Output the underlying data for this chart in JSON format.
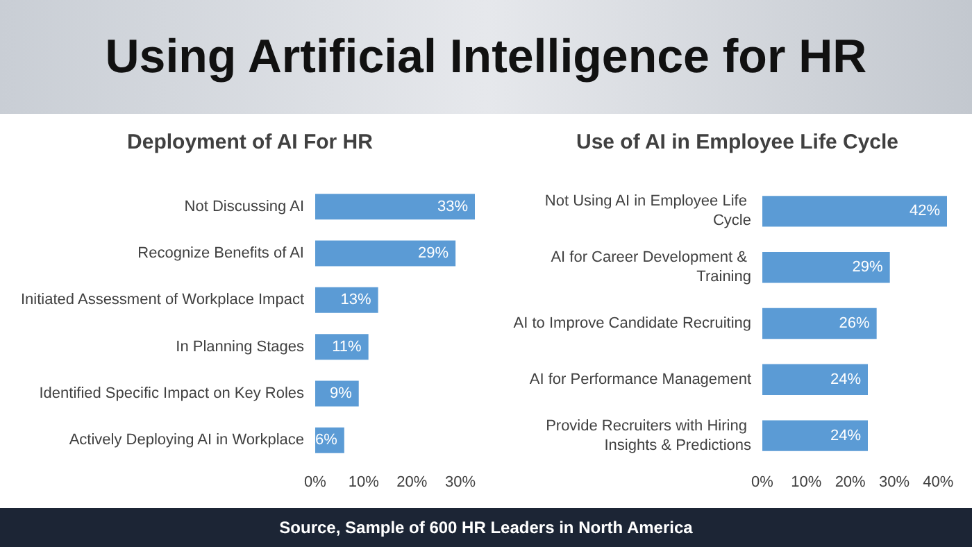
{
  "chart_data": [
    {
      "type": "other",
      "title": "Using Artificial Intelligence for HR",
      "annotations": [
        "Source, Sample of 600 HR Leaders in North America"
      ]
    },
    {
      "type": "bar",
      "orientation": "horizontal",
      "title": "Deployment of AI For HR",
      "categories": [
        "Not Discussing AI",
        "Recognize Benefits of AI",
        "Initiated Assessment of Workplace Impact",
        "In Planning Stages",
        "Identified Specific Impact on Key Roles",
        "Actively Deploying AI in Workplace"
      ],
      "values": [
        33,
        29,
        13,
        11,
        9,
        6
      ],
      "value_labels": [
        "33%",
        "29%",
        "13%",
        "11%",
        "9%",
        "6%"
      ],
      "color": "#5b9bd5",
      "xlim": [
        0,
        33
      ],
      "xticks": [
        {
          "value": 0,
          "label": "0%"
        },
        {
          "value": 10,
          "label": "10%"
        },
        {
          "value": 20,
          "label": "20%"
        },
        {
          "value": 30,
          "label": "30%"
        }
      ]
    },
    {
      "type": "bar",
      "orientation": "horizontal",
      "title": "Use of AI in Employee Life Cycle",
      "categories": [
        "Not Using AI in Employee Life Cycle",
        "AI for Career Development & Training",
        "AI to Improve Candidate Recruiting",
        "AI for Performance Management",
        "Provide Recruiters with Hiring Insights & Predictions"
      ],
      "values": [
        42,
        29,
        26,
        24,
        24
      ],
      "value_labels": [
        "42%",
        "29%",
        "26%",
        "24%",
        "24%"
      ],
      "color": "#5b9bd5",
      "xlim": [
        0,
        42
      ],
      "xticks": [
        {
          "value": 0,
          "label": "0%"
        },
        {
          "value": 10,
          "label": "10%"
        },
        {
          "value": 20,
          "label": "20%"
        },
        {
          "value": 30,
          "label": "30%"
        },
        {
          "value": 40,
          "label": "40%"
        }
      ]
    }
  ]
}
